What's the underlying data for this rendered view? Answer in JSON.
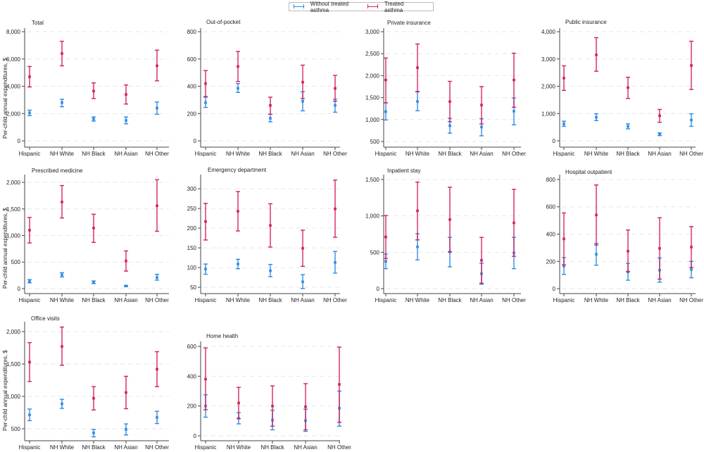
{
  "legend": {
    "items": [
      {
        "label": "Without treated asthma",
        "color": "#2f8ae6"
      },
      {
        "label": "Treated asthma",
        "color": "#d4205a"
      }
    ]
  },
  "y_axis_label": "Per-child annual expenditures, $",
  "chart_data": [
    {
      "type": "scatter",
      "title": "Total",
      "categories": [
        "Hispanic",
        "NH White",
        "NH Black",
        "NH Asian",
        "NH Other"
      ],
      "ylim": [
        -460,
        8260
      ],
      "yticks": [
        0,
        2000,
        4000,
        6000,
        8000
      ],
      "grid": true,
      "series": [
        {
          "name": "Without treated asthma",
          "values": [
            2050,
            2800,
            1600,
            1500,
            2400
          ],
          "lower": [
            1850,
            2500,
            1450,
            1250,
            1950
          ],
          "upper": [
            2250,
            3050,
            1750,
            1750,
            2850
          ]
        },
        {
          "name": "Treated asthma",
          "values": [
            4700,
            6400,
            3650,
            3400,
            5500
          ],
          "lower": [
            3950,
            5500,
            3100,
            2700,
            4400
          ],
          "upper": [
            5450,
            7300,
            4250,
            4100,
            6650
          ]
        }
      ]
    },
    {
      "type": "scatter",
      "title": "Out-of-pocket",
      "categories": [
        "Hispanic",
        "NH White",
        "NH Black",
        "NH Asian",
        "NH Other"
      ],
      "ylim": [
        -46,
        826
      ],
      "yticks": [
        0,
        200,
        400,
        600,
        800
      ],
      "grid": true,
      "series": [
        {
          "name": "Without treated asthma",
          "values": [
            280,
            385,
            165,
            290,
            260
          ],
          "lower": [
            245,
            355,
            140,
            220,
            210
          ],
          "upper": [
            320,
            420,
            195,
            360,
            305
          ]
        },
        {
          "name": "Treated asthma",
          "values": [
            420,
            545,
            260,
            430,
            385
          ],
          "lower": [
            325,
            435,
            195,
            310,
            290
          ],
          "upper": [
            515,
            655,
            320,
            555,
            480
          ]
        }
      ]
    },
    {
      "type": "scatter",
      "title": "Private insurance",
      "categories": [
        "Hispanic",
        "NH White",
        "NH Black",
        "NH Asian",
        "NH Other"
      ],
      "ylim": [
        372,
        3080
      ],
      "yticks": [
        500,
        1000,
        1500,
        2000,
        2500,
        3000
      ],
      "grid": true,
      "series": [
        {
          "name": "Without treated asthma",
          "values": [
            1180,
            1410,
            860,
            830,
            1190
          ],
          "lower": [
            990,
            1200,
            690,
            630,
            880
          ],
          "upper": [
            1380,
            1640,
            1030,
            1020,
            1490
          ]
        },
        {
          "name": "Treated asthma",
          "values": [
            1900,
            2180,
            1410,
            1330,
            1900
          ],
          "lower": [
            1380,
            1630,
            950,
            900,
            1280
          ],
          "upper": [
            2400,
            2720,
            1870,
            1750,
            2510
          ]
        }
      ]
    },
    {
      "type": "scatter",
      "title": "Public insurance",
      "categories": [
        "Hispanic",
        "NH White",
        "NH Black",
        "NH Asian",
        "NH Other"
      ],
      "ylim": [
        -232,
        4129
      ],
      "yticks": [
        0,
        1000,
        2000,
        3000,
        4000
      ],
      "grid": true,
      "series": [
        {
          "name": "Without treated asthma",
          "values": [
            620,
            860,
            530,
            240,
            760
          ],
          "lower": [
            530,
            740,
            440,
            190,
            530
          ],
          "upper": [
            720,
            990,
            620,
            290,
            990
          ]
        },
        {
          "name": "Treated asthma",
          "values": [
            2300,
            3150,
            1950,
            920,
            2760
          ],
          "lower": [
            1850,
            2550,
            1550,
            680,
            1880
          ],
          "upper": [
            2750,
            3780,
            2330,
            1150,
            3650
          ]
        }
      ]
    },
    {
      "type": "scatter",
      "title": "Prescribed medicine",
      "categories": [
        "Hispanic",
        "NH White",
        "NH Black",
        "NH Asian",
        "NH Other"
      ],
      "ylim": [
        -93,
        2146
      ],
      "yticks": [
        0,
        500,
        1000,
        1500,
        2000
      ],
      "grid": true,
      "series": [
        {
          "name": "Without treated asthma",
          "values": [
            140,
            260,
            120,
            50,
            210
          ],
          "lower": [
            110,
            220,
            95,
            40,
            160
          ],
          "upper": [
            170,
            300,
            145,
            60,
            270
          ]
        },
        {
          "name": "Treated asthma",
          "values": [
            1100,
            1630,
            1140,
            520,
            1560
          ],
          "lower": [
            860,
            1330,
            870,
            330,
            1080
          ],
          "upper": [
            1340,
            1940,
            1400,
            710,
            2050
          ]
        }
      ]
    },
    {
      "type": "scatter",
      "title": "Emergency department",
      "categories": [
        "Hispanic",
        "NH White",
        "NH Black",
        "NH Asian",
        "NH Other"
      ],
      "ylim": [
        34,
        336
      ],
      "yticks": [
        50,
        100,
        150,
        200,
        250,
        300
      ],
      "grid": true,
      "series": [
        {
          "name": "Without treated asthma",
          "values": [
            96,
            109,
            92,
            64,
            113
          ],
          "lower": [
            83,
            97,
            77,
            47,
            86
          ],
          "upper": [
            109,
            121,
            108,
            82,
            141
          ]
        },
        {
          "name": "Treated asthma",
          "values": [
            217,
            243,
            207,
            149,
            249
          ],
          "lower": [
            170,
            193,
            152,
            103,
            177
          ],
          "upper": [
            263,
            293,
            262,
            195,
            322
          ]
        }
      ]
    },
    {
      "type": "scatter",
      "title": "Inpatient stay",
      "categories": [
        "Hispanic",
        "NH White",
        "NH Black",
        "NH Asian",
        "NH Other"
      ],
      "ylim": [
        -68,
        1568
      ],
      "yticks": [
        0,
        500,
        1000,
        1500
      ],
      "grid": true,
      "series": [
        {
          "name": "Without treated asthma",
          "values": [
            375,
            575,
            505,
            205,
            490
          ],
          "lower": [
            275,
            395,
            300,
            60,
            275
          ],
          "upper": [
            475,
            755,
            705,
            350,
            705
          ]
        },
        {
          "name": "Treated asthma",
          "values": [
            710,
            1070,
            950,
            390,
            905
          ],
          "lower": [
            415,
            670,
            505,
            75,
            445
          ],
          "upper": [
            1005,
            1465,
            1395,
            705,
            1365
          ]
        }
      ]
    },
    {
      "type": "scatter",
      "title": "Hospital outpatient",
      "categories": [
        "Hispanic",
        "NH White",
        "NH Black",
        "NH Asian",
        "NH Other"
      ],
      "ylim": [
        -36,
        836
      ],
      "yticks": [
        0,
        200,
        400,
        600,
        800
      ],
      "grid": true,
      "series": [
        {
          "name": "Without treated asthma",
          "values": [
            165,
            252,
            123,
            135,
            140
          ],
          "lower": [
            105,
            172,
            62,
            48,
            80
          ],
          "upper": [
            228,
            332,
            185,
            225,
            200
          ]
        },
        {
          "name": "Treated asthma",
          "values": [
            365,
            540,
            275,
            295,
            305
          ],
          "lower": [
            175,
            320,
            125,
            70,
            155
          ],
          "upper": [
            555,
            760,
            430,
            520,
            455
          ]
        }
      ]
    },
    {
      "type": "scatter",
      "title": "Office visits",
      "categories": [
        "Hispanic",
        "NH White",
        "NH Black",
        "NH Asian",
        "NH Other"
      ],
      "ylim": [
        315,
        2152
      ],
      "yticks": [
        500,
        1000,
        1500,
        2000
      ],
      "grid": true,
      "series": [
        {
          "name": "Without treated asthma",
          "values": [
            715,
            885,
            435,
            490,
            675
          ],
          "lower": [
            625,
            815,
            375,
            405,
            580
          ],
          "upper": [
            805,
            955,
            490,
            575,
            770
          ]
        },
        {
          "name": "Treated asthma",
          "values": [
            1530,
            1770,
            970,
            1060,
            1420
          ],
          "lower": [
            1230,
            1480,
            790,
            810,
            1150
          ],
          "upper": [
            1830,
            2070,
            1150,
            1310,
            1690
          ]
        }
      ]
    },
    {
      "type": "scatter",
      "title": "Home health",
      "categories": [
        "Hispanic",
        "NH White",
        "NH Black",
        "NH Asian",
        "NH Other"
      ],
      "ylim": [
        -33,
        633
      ],
      "yticks": [
        0,
        200,
        400,
        600
      ],
      "grid": true,
      "series": [
        {
          "name": "Without treated asthma",
          "values": [
            200,
            118,
            105,
            102,
            185
          ],
          "lower": [
            125,
            80,
            40,
            30,
            65
          ],
          "upper": [
            275,
            155,
            172,
            178,
            300
          ]
        },
        {
          "name": "Treated asthma",
          "values": [
            380,
            220,
            200,
            195,
            345
          ],
          "lower": [
            175,
            115,
            65,
            40,
            90
          ],
          "upper": [
            590,
            325,
            335,
            350,
            595
          ]
        }
      ]
    }
  ]
}
